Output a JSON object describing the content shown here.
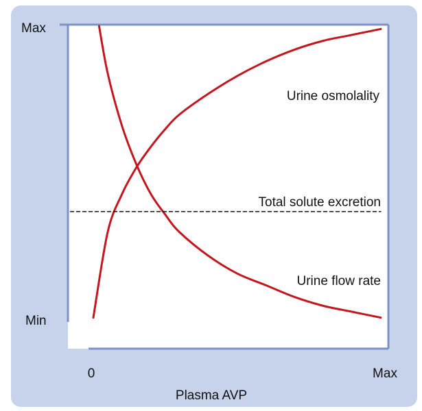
{
  "chart_data": {
    "type": "line",
    "title": "",
    "xlabel": "Plasma AVP",
    "ylabel": "",
    "x_ticks": [
      "0",
      "Max"
    ],
    "y_ticks": [
      "Min",
      "Max"
    ],
    "xlim": [
      0,
      1
    ],
    "ylim": [
      0,
      1
    ],
    "grid": false,
    "series": [
      {
        "name": "Urine osmolality",
        "color": "#c4161c",
        "x": [
          0.0,
          0.05,
          0.1,
          0.15,
          0.2,
          0.25,
          0.3,
          0.4,
          0.5,
          0.6,
          0.7,
          0.8,
          0.9,
          1.0
        ],
        "y": [
          0.01,
          0.3,
          0.43,
          0.52,
          0.59,
          0.65,
          0.7,
          0.77,
          0.83,
          0.88,
          0.92,
          0.95,
          0.97,
          0.99
        ]
      },
      {
        "name": "Urine flow rate",
        "color": "#c4161c",
        "x": [
          0.02,
          0.05,
          0.1,
          0.15,
          0.2,
          0.25,
          0.3,
          0.4,
          0.5,
          0.6,
          0.7,
          0.8,
          0.9,
          1.0
        ],
        "y": [
          1.0,
          0.84,
          0.66,
          0.53,
          0.43,
          0.36,
          0.3,
          0.22,
          0.16,
          0.12,
          0.08,
          0.05,
          0.03,
          0.01
        ]
      },
      {
        "name": "Total solute excretion",
        "color": "#111111",
        "dashed": true,
        "x": [
          -0.08,
          1.0
        ],
        "y": [
          0.37,
          0.37
        ]
      }
    ]
  }
}
